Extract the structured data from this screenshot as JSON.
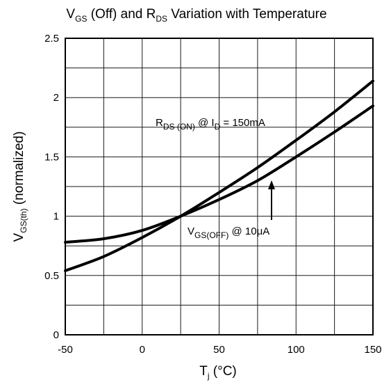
{
  "chart_data": {
    "type": "line",
    "title": {
      "main": "V",
      "sub1": "GS",
      "mid": " (Off) and R",
      "sub2": "DS",
      "end": " Variation with Temperature"
    },
    "xlabel": {
      "main": "T",
      "sub": "j",
      "end": " (°C)"
    },
    "ylabel": {
      "main": "V",
      "sub": "GS(th)",
      "end": " (normalized)"
    },
    "xlim": [
      -50,
      150
    ],
    "ylim": [
      0,
      2.5
    ],
    "x_ticks": [
      -50,
      0,
      50,
      100,
      150
    ],
    "y_ticks": [
      0,
      0.5,
      1,
      1.5,
      2,
      2.5
    ],
    "x_tick_labels": [
      "-50",
      "0",
      "50",
      "100",
      "150"
    ],
    "y_tick_labels": [
      "0",
      "0.5",
      "1",
      "1.5",
      "2",
      "2.5"
    ],
    "x_grid_step": 25,
    "y_grid_step": 0.25,
    "grid": true,
    "series": [
      {
        "key": "rds_on",
        "x": [
          -50,
          -25,
          0,
          25,
          50,
          75,
          100,
          125,
          150
        ],
        "values": [
          0.54,
          0.66,
          0.82,
          1.0,
          1.2,
          1.41,
          1.64,
          1.88,
          2.14
        ]
      },
      {
        "key": "vgs_off",
        "x": [
          -50,
          -25,
          0,
          25,
          50,
          75,
          100,
          125,
          150
        ],
        "values": [
          0.78,
          0.81,
          0.88,
          1.0,
          1.14,
          1.3,
          1.5,
          1.71,
          1.93
        ]
      }
    ],
    "annotations": {
      "rds": {
        "p1": "R",
        "s1": "DS (ON)",
        "p2": " @ I",
        "s2": "D",
        "p3": " = 150mA"
      },
      "vgs": {
        "p1": "V",
        "s1": "GS(OFF)",
        "p2": " @ 10μA"
      }
    }
  }
}
